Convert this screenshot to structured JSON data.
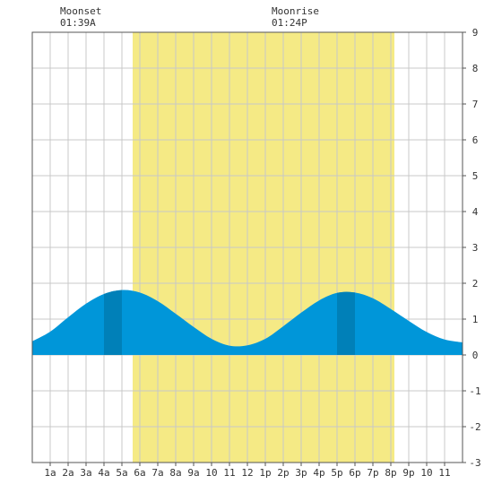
{
  "moon": {
    "moonset": {
      "label": "Moonset",
      "time": "01:39A"
    },
    "moonrise": {
      "label": "Moonrise",
      "time": "01:24P"
    }
  },
  "colors": {
    "daylight": "#f5ea85",
    "tide_light": "#0096d9",
    "tide_dark": "#0080b8",
    "grid": "#c8c8c8",
    "border": "#555555"
  },
  "chart_data": {
    "type": "area",
    "title": "",
    "xlabel": "",
    "ylabel": "",
    "xlim": [
      0,
      24
    ],
    "ylim": [
      -3,
      9
    ],
    "grid": true,
    "x_tick_labels": [
      "1a",
      "2a",
      "3a",
      "4a",
      "5a",
      "6a",
      "7a",
      "8a",
      "9a",
      "10",
      "11",
      "12",
      "1p",
      "2p",
      "3p",
      "4p",
      "5p",
      "6p",
      "7p",
      "8p",
      "9p",
      "10",
      "11"
    ],
    "y_tick_labels": [
      "9",
      "8",
      "7",
      "6",
      "5",
      "4",
      "3",
      "2",
      "1",
      "0",
      "-1",
      "-2",
      "-3"
    ],
    "daylight_hours": [
      5.6,
      20.2
    ],
    "series": [
      {
        "x": [
          0,
          1,
          2,
          3,
          4,
          5,
          6,
          7,
          8,
          9,
          10,
          11,
          12,
          13,
          14,
          15,
          16,
          17,
          18,
          19,
          20,
          21,
          22,
          23,
          24
        ],
        "values": [
          0.38,
          0.65,
          1.05,
          1.43,
          1.7,
          1.81,
          1.74,
          1.5,
          1.15,
          0.78,
          0.45,
          0.26,
          0.27,
          0.45,
          0.8,
          1.18,
          1.52,
          1.73,
          1.74,
          1.58,
          1.28,
          0.95,
          0.64,
          0.43,
          0.35
        ]
      }
    ],
    "dark_bands": [
      [
        4,
        5
      ],
      [
        17,
        18
      ]
    ]
  }
}
